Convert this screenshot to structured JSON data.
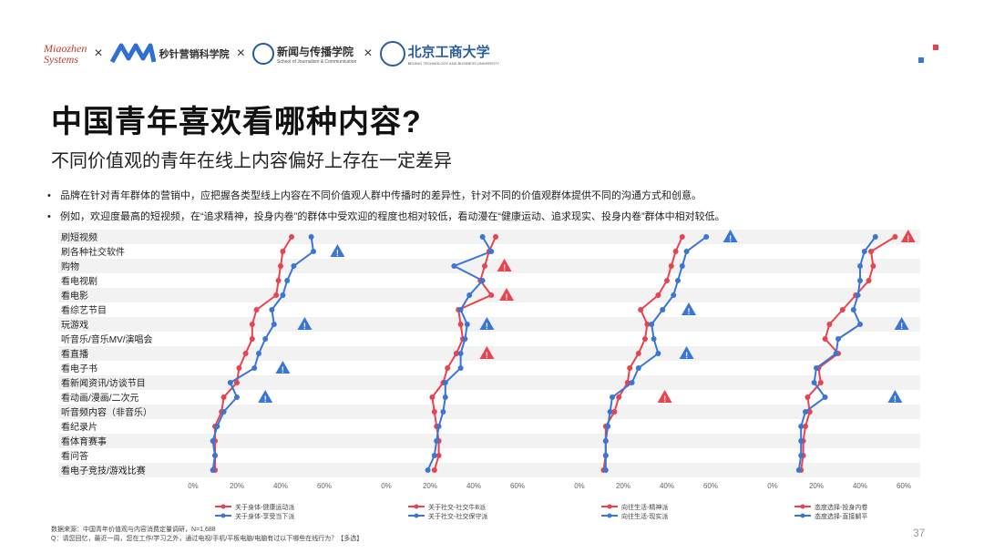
{
  "logos": {
    "miaozhen": "Miaozhen Systems",
    "miaozhen_line1": "Miaozhen",
    "miaozhen_line2": "Systems",
    "separator": "×",
    "mmi": "秒针营销科学院",
    "journalism": "新闻与传播学院",
    "journalism_en": "School of Journalism & Communication",
    "btbu": "北京工商大学",
    "btbu_en": "BEIJING TECHNOLOGY AND BUSINESS UNIVERSITY"
  },
  "title": "中国青年喜欢看哪种内容?",
  "subtitle": "不同价值观的青年在线上内容偏好上存在一定差异",
  "bullets": [
    "品牌在针对青年群体的营销中，应把握各类型线上内容在不同价值观人群中传播时的差异性，针对不同的价值观群体提供不同的沟通方式和创意。",
    "例如，欢迎度最高的短视频，在“追求精神，投身内卷”的群体中受欢迎的程度也相对较低，看动漫在“健康运动、追求现实、投身内卷”群体中相对较低。"
  ],
  "footer": {
    "source": "数据来源：中国青年价值观与内容消费定量调研，N=1,688",
    "question": "Q：请您回忆，最近一周，您在工作/学习之外，通过电视/手机/平板电脑/电脑有过以下哪些在线行为？【多选】"
  },
  "page_number": "37",
  "colors": {
    "red": "#e8434f",
    "blue": "#3a76d8",
    "warning": "#e8434f",
    "info": "#3a76d8"
  },
  "chart_data": {
    "type": "line",
    "categories": [
      "刷短视频",
      "刷各种社交软件",
      "购物",
      "看电视剧",
      "看电影",
      "看综艺节目",
      "玩游戏",
      "听音乐/音乐MV/演唱会",
      "看直播",
      "看电子书",
      "看新闻资讯/访谈节目",
      "看动画/漫画/二次元",
      "听音频内容（非音乐）",
      "看纪录片",
      "看体育赛事",
      "看问答",
      "看电子竞技/游戏比赛"
    ],
    "xlim": [
      0,
      60
    ],
    "xticks": [
      "0%",
      "20%",
      "40%",
      "60%"
    ],
    "panels": [
      {
        "series": [
          {
            "name": "关于身体-健康运动派",
            "color": "red",
            "values": [
              45,
              41,
              40,
              39,
              38,
              29,
              27,
              27,
              24,
              21,
              20,
              14,
              13,
              10,
              10,
              10,
              10
            ]
          },
          {
            "name": "关于身体-享受当下派",
            "color": "blue",
            "values": [
              54,
              55,
              46,
              43,
              41,
              36,
              37,
              33,
              30,
              28,
              17,
              20,
              14,
              11,
              9,
              10,
              9
            ]
          }
        ],
        "markers": [
          {
            "row": 1,
            "kind": "info",
            "x": 66
          },
          {
            "row": 6,
            "kind": "info",
            "x": 51
          },
          {
            "row": 9,
            "kind": "info",
            "x": 41
          },
          {
            "row": 11,
            "kind": "info",
            "x": 33
          }
        ]
      },
      {
        "series": [
          {
            "name": "关于社交-社交牛B派",
            "color": "red",
            "values": [
              50,
              47,
              45,
              43,
              48,
              33,
              34,
              35,
              32,
              28,
              26,
              21,
              22,
              23,
              24,
              24,
              22
            ]
          },
          {
            "name": "关于社交-社交保守派",
            "color": "blue",
            "values": [
              44,
              48,
              31,
              44,
              38,
              34,
              37,
              36,
              34,
              34,
              27,
              27,
              26,
              24,
              23,
              22,
              19
            ]
          }
        ],
        "markers": [
          {
            "row": 2,
            "kind": "warning",
            "x": 54
          },
          {
            "row": 4,
            "kind": "warning",
            "x": 55
          },
          {
            "row": 6,
            "kind": "info",
            "x": 46
          },
          {
            "row": 8,
            "kind": "warning",
            "x": 46
          }
        ]
      },
      {
        "series": [
          {
            "name": "向往生活-精神派",
            "color": "red",
            "values": [
              47,
              44,
              42,
              40,
              36,
              28,
              31,
              30,
              27,
              23,
              22,
              18,
              16,
              12,
              12,
              12,
              11
            ]
          },
          {
            "name": "向往生活-现实派",
            "color": "blue",
            "values": [
              58,
              49,
              47,
              45,
              43,
              38,
              33,
              34,
              36,
              27,
              24,
              15,
              14,
              13,
              12,
              12,
              12
            ]
          }
        ],
        "markers": [
          {
            "row": 0,
            "kind": "info",
            "x": 69
          },
          {
            "row": 5,
            "kind": "info",
            "x": 50
          },
          {
            "row": 8,
            "kind": "info",
            "x": 49
          },
          {
            "row": 11,
            "kind": "warning",
            "x": 39
          }
        ]
      },
      {
        "series": [
          {
            "name": "态度选择-投身内卷",
            "color": "red",
            "values": [
              56,
              45,
              46,
              44,
              38,
              32,
              26,
              24,
              30,
              21,
              22,
              16,
              17,
              15,
              14,
              14,
              13
            ]
          },
          {
            "name": "态度选择-直接躺平",
            "color": "blue",
            "values": [
              47,
              42,
              40,
              40,
              39,
              37,
              40,
              30,
              29,
              20,
              19,
              24,
              15,
              13,
              13,
              13,
              12
            ]
          }
        ],
        "markers": [
          {
            "row": 0,
            "kind": "warning",
            "x": 62
          },
          {
            "row": 6,
            "kind": "info",
            "x": 59
          },
          {
            "row": 11,
            "kind": "info",
            "x": 56
          }
        ]
      }
    ]
  }
}
